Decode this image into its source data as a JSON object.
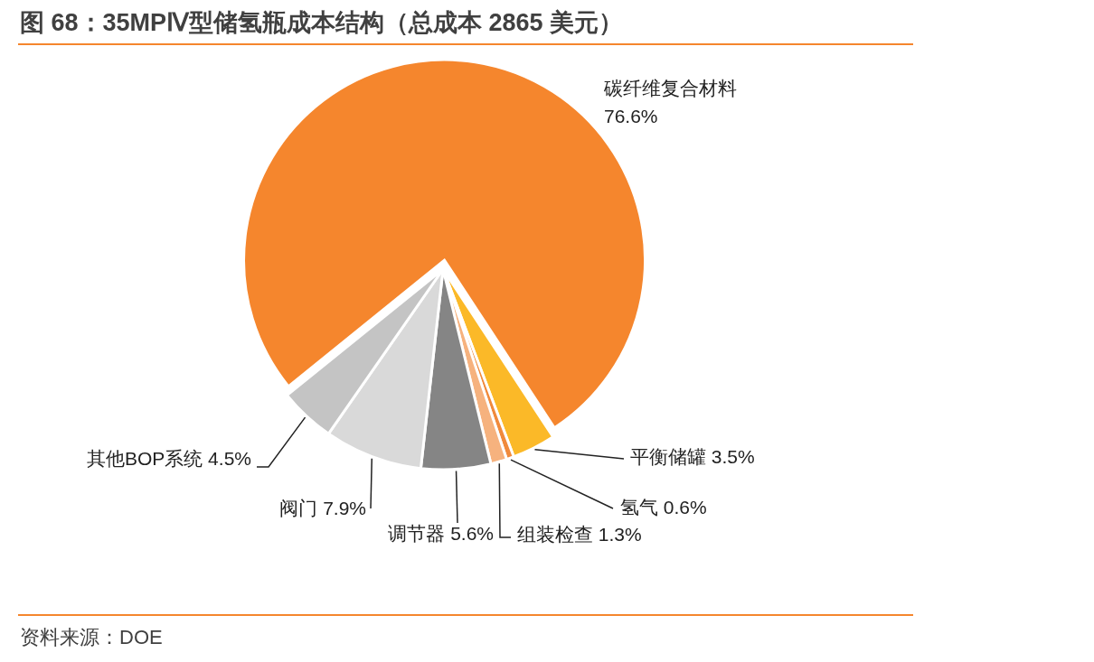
{
  "chart_data": {
    "type": "pie",
    "title": "图 68：35MPⅣ型储氢瓶成本结构（总成本 2865 美元）",
    "categories": [
      "碳纤维复合材料",
      "平衡储罐",
      "氢气",
      "组装检查",
      "调节器",
      "阀门",
      "其他BOP系统"
    ],
    "values": [
      76.6,
      3.5,
      0.6,
      1.3,
      5.6,
      7.9,
      4.5
    ],
    "colors": [
      "#f5862d",
      "#fbb928",
      "#f08a3c",
      "#f6b27e",
      "#858585",
      "#d9d9d9",
      "#c4c4c4"
    ],
    "value_labels": [
      "76.6%",
      "3.5%",
      "0.6%",
      "1.3%",
      "5.6%",
      "7.9%",
      "4.5%"
    ],
    "annotations": [
      "资料来源：DOE"
    ]
  }
}
